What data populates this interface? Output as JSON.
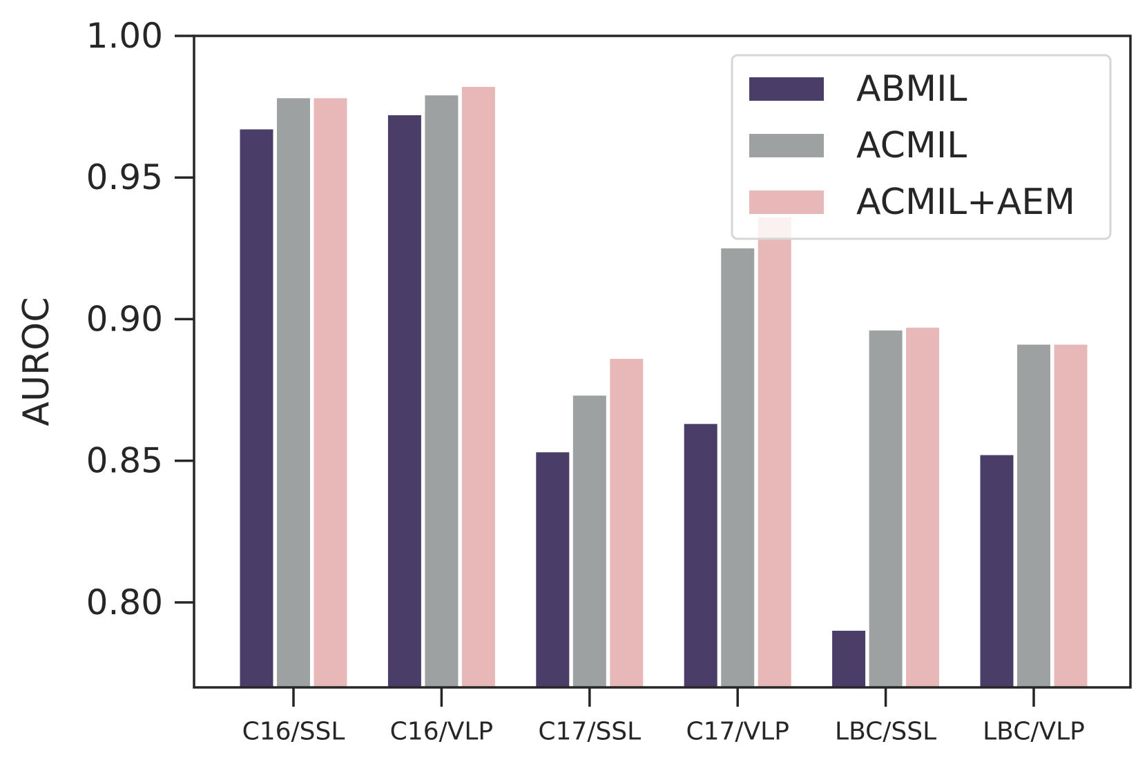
{
  "chart_data": {
    "type": "bar",
    "title": "",
    "xlabel": "",
    "ylabel": "AUROC",
    "ylim": [
      0.77,
      1.0
    ],
    "yticks": [
      "0.80",
      "0.85",
      "0.90",
      "0.95",
      "1.00"
    ],
    "grid": false,
    "legend_position": "top-right",
    "categories": [
      "C16/SSL",
      "C16/VLP",
      "C17/SSL",
      "C17/VLP",
      "LBC/SSL",
      "LBC/VLP"
    ],
    "series": [
      {
        "name": "ABMIL",
        "color": "#4a3e68",
        "values": [
          0.967,
          0.972,
          0.853,
          0.863,
          0.79,
          0.852
        ]
      },
      {
        "name": "ACMIL",
        "color": "#9da1a2",
        "values": [
          0.978,
          0.979,
          0.873,
          0.925,
          0.896,
          0.891
        ]
      },
      {
        "name": "ACMIL+AEM",
        "color": "#e8b7b8",
        "values": [
          0.978,
          0.982,
          0.886,
          0.936,
          0.897,
          0.891
        ]
      }
    ]
  }
}
